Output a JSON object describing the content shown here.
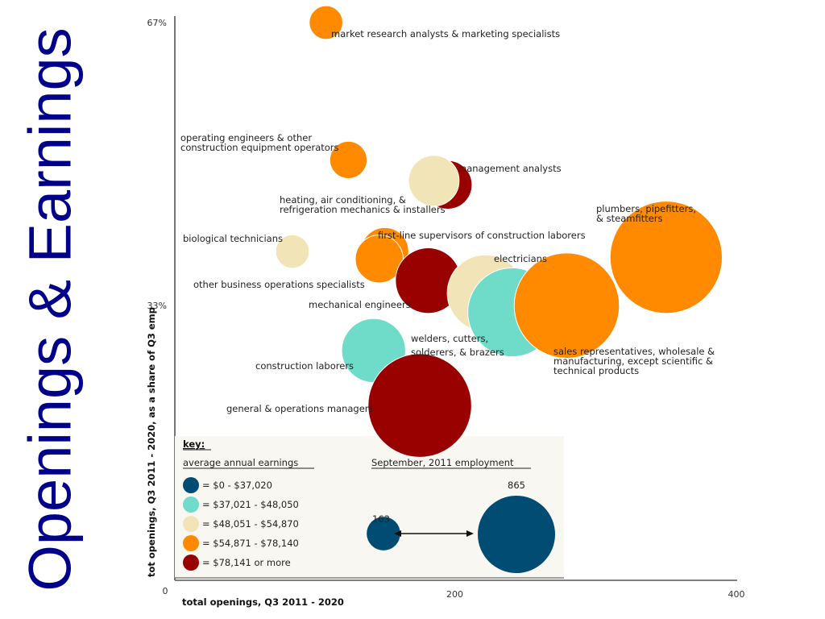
{
  "slide_title": "Openings & Earnings",
  "chart_data": {
    "type": "scatter",
    "subtype": "bubble",
    "title": "Openings & Earnings",
    "xlabel": "total openings, Q3 2011 - 2020",
    "ylabel": "tot openings, Q3 2011 - 2020, as a share of Q3 emp",
    "xlim": [
      0,
      400
    ],
    "ylim": [
      0,
      67
    ],
    "x_ticks": [
      "0",
      "200",
      "400"
    ],
    "y_ticks": [
      {
        "value": 67,
        "label": "67%"
      },
      {
        "value": 33,
        "label": "33%"
      }
    ],
    "grid": false,
    "earnings_categories": [
      {
        "id": "c1",
        "label": "= $0 - $37,020",
        "color": "#004c73"
      },
      {
        "id": "c2",
        "label": "= $37,021 - $48,050",
        "color": "#6fdbc9"
      },
      {
        "id": "c3",
        "label": "= $48,051 - $54,870",
        "color": "#f1e4b6"
      },
      {
        "id": "c4",
        "label": "= $54,871 - $78,140",
        "color": "#ff8a00"
      },
      {
        "id": "c5",
        "label": "= $78,141 or more",
        "color": "#990000"
      }
    ],
    "points": [
      {
        "name": "market research analysts & marketing specialists",
        "x": 108,
        "y": 67,
        "employment": 163,
        "category": "c4"
      },
      {
        "name": "operating engineers & other construction equipment operators",
        "x": 124,
        "y": 50.5,
        "employment": 200,
        "category": "c4"
      },
      {
        "name": "management analysts",
        "x": 195,
        "y": 47.5,
        "employment": 340,
        "category": "c5"
      },
      {
        "name": "heating, air conditioning, & refrigeration mechanics & installers",
        "x": 185,
        "y": 48,
        "employment": 370,
        "category": "c3"
      },
      {
        "name": "biological technicians",
        "x": 84,
        "y": 39.5,
        "employment": 163,
        "category": "c3"
      },
      {
        "name": "first-line supervisors of construction laborers",
        "x": 150,
        "y": 39.5,
        "employment": 330,
        "category": "c4"
      },
      {
        "name": "other business operations specialists",
        "x": 146,
        "y": 38.6,
        "employment": 330,
        "category": "c4"
      },
      {
        "name": "mechanical engineers",
        "x": 181,
        "y": 36,
        "employment": 620,
        "category": "c5"
      },
      {
        "name": "electricians",
        "x": 222,
        "y": 34.5,
        "employment": 850,
        "category": "c3"
      },
      {
        "name": "welders, cutters, solderers, & brazers",
        "x": 241,
        "y": 32.2,
        "employment": 1140,
        "category": "c2"
      },
      {
        "name": "plumbers, pipefitters, & steamfitters",
        "x": 351,
        "y": 38.8,
        "employment": 1820,
        "category": "c4"
      },
      {
        "name": "sales representatives, wholesale & manufacturing, except scientific & technical products",
        "x": 280,
        "y": 33,
        "employment": 1600,
        "category": "c4"
      },
      {
        "name": "construction laborers",
        "x": 142,
        "y": 27.6,
        "employment": 590,
        "category": "c2"
      },
      {
        "name": "general & operations managers",
        "x": 175,
        "y": 21,
        "employment": 1550,
        "category": "c5"
      }
    ],
    "legend": {
      "placement": "bottom-left",
      "title": "key:",
      "earnings_heading": "average annual earnings",
      "employment_heading": "September, 2011 employment",
      "size_reference": [
        {
          "value": 163,
          "label": "163",
          "color": "#004c73"
        },
        {
          "value": 865,
          "label": "865",
          "color": "#004c73"
        }
      ]
    }
  }
}
